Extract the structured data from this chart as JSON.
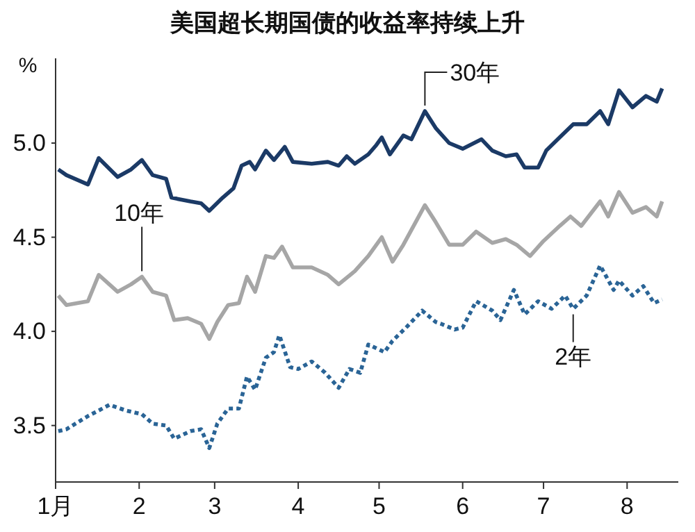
{
  "chart_data": {
    "type": "line",
    "title": "美国超长期国债的收益率持续上升",
    "ylabel": "%",
    "xlim": [
      "--01-01",
      "--08-20"
    ],
    "xticks": [
      {
        "value": "--01-01",
        "label": "1月"
      },
      {
        "value": "--02-01",
        "label": "2"
      },
      {
        "value": "--03-01",
        "label": "3"
      },
      {
        "value": "--04-01",
        "label": "4"
      },
      {
        "value": "--05-01",
        "label": "5"
      },
      {
        "value": "--06-01",
        "label": "6"
      },
      {
        "value": "--07-01",
        "label": "7"
      },
      {
        "value": "--08-01",
        "label": "8"
      }
    ],
    "ylim": [
      3.2,
      5.45
    ],
    "yticks": [
      {
        "value": 3.5,
        "label": "3.5"
      },
      {
        "value": 4,
        "label": "4.0"
      },
      {
        "value": 4.5,
        "label": "4.5"
      },
      {
        "value": 5,
        "label": "5.0"
      }
    ],
    "grid": false,
    "series": [
      {
        "color": "#1b3a66",
        "line_style": "solid",
        "x": [
          "--01-02",
          "--01-05",
          "--01-13",
          "--01-17",
          "--01-24",
          "--01-29",
          "--02-02",
          "--02-06",
          "--02-11",
          "--02-13",
          "--02-20",
          "--02-24",
          "--02-27",
          "--03-04",
          "--03-08",
          "--03-11",
          "--03-14",
          "--03-16",
          "--03-20",
          "--03-23",
          "--03-27",
          "--03-30",
          "--04-06",
          "--04-12",
          "--04-16",
          "--04-19",
          "--04-22",
          "--04-27",
          "--04-30",
          "--05-02",
          "--05-05",
          "--05-10",
          "--05-13",
          "--05-18",
          "--05-22",
          "--05-27",
          "--06-01",
          "--06-08",
          "--06-12",
          "--06-17",
          "--06-21",
          "--06-24",
          "--06-29",
          "--07-02",
          "--07-07",
          "--07-12",
          "--07-17",
          "--07-22",
          "--07-25",
          "--07-29",
          "--08-03",
          "--08-08",
          "--08-12",
          "--08-14"
        ],
        "values": [
          4.86,
          4.83,
          4.78,
          4.92,
          4.82,
          4.86,
          4.91,
          4.83,
          4.81,
          4.71,
          4.69,
          4.68,
          4.64,
          4.71,
          4.76,
          4.88,
          4.9,
          4.86,
          4.96,
          4.91,
          4.98,
          4.9,
          4.89,
          4.9,
          4.88,
          4.93,
          4.89,
          4.94,
          4.99,
          5.03,
          4.94,
          5.04,
          5.02,
          5.17,
          5.08,
          5.0,
          4.97,
          5.02,
          4.96,
          4.93,
          4.94,
          4.87,
          4.87,
          4.96,
          5.03,
          5.1,
          5.1,
          5.17,
          5.1,
          5.28,
          5.19,
          5.25,
          5.22,
          5.29
        ]
      },
      {
        "color": "#a6a6a6",
        "line_style": "solid",
        "x": [
          "--01-02",
          "--01-05",
          "--01-13",
          "--01-17",
          "--01-24",
          "--01-29",
          "--02-02",
          "--02-06",
          "--02-11",
          "--02-14",
          "--02-19",
          "--02-24",
          "--02-27",
          "--03-02",
          "--03-06",
          "--03-10",
          "--03-13",
          "--03-16",
          "--03-20",
          "--03-23",
          "--03-26",
          "--03-30",
          "--04-06",
          "--04-12",
          "--04-16",
          "--04-22",
          "--04-27",
          "--05-02",
          "--05-06",
          "--05-10",
          "--05-18",
          "--05-22",
          "--05-27",
          "--06-01",
          "--06-06",
          "--06-12",
          "--06-17",
          "--06-21",
          "--06-26",
          "--07-01",
          "--07-07",
          "--07-11",
          "--07-15",
          "--07-22",
          "--07-25",
          "--07-29",
          "--08-03",
          "--08-08",
          "--08-12",
          "--08-14"
        ],
        "values": [
          4.19,
          4.14,
          4.16,
          4.3,
          4.21,
          4.25,
          4.29,
          4.21,
          4.19,
          4.06,
          4.07,
          4.04,
          3.96,
          4.05,
          4.14,
          4.15,
          4.29,
          4.21,
          4.4,
          4.39,
          4.45,
          4.34,
          4.34,
          4.3,
          4.25,
          4.32,
          4.4,
          4.5,
          4.37,
          4.46,
          4.67,
          4.58,
          4.46,
          4.46,
          4.53,
          4.47,
          4.49,
          4.46,
          4.4,
          4.48,
          4.56,
          4.61,
          4.56,
          4.69,
          4.61,
          4.74,
          4.63,
          4.66,
          4.61,
          4.69
        ]
      },
      {
        "color": "#2a6496",
        "line_style": "dotted",
        "x": [
          "--01-02",
          "--01-05",
          "--01-13",
          "--01-21",
          "--01-27",
          "--02-02",
          "--02-06",
          "--02-11",
          "--02-14",
          "--02-20",
          "--02-24",
          "--02-27",
          "--03-02",
          "--03-06",
          "--03-10",
          "--03-13",
          "--03-16",
          "--03-20",
          "--03-23",
          "--03-25",
          "--03-29",
          "--04-01",
          "--04-06",
          "--04-11",
          "--04-16",
          "--04-20",
          "--04-24",
          "--04-27",
          "--05-03",
          "--05-06",
          "--05-11",
          "--05-17",
          "--05-22",
          "--05-24",
          "--05-29",
          "--06-01",
          "--06-06",
          "--06-12",
          "--06-15",
          "--06-20",
          "--06-24",
          "--06-29",
          "--07-04",
          "--07-09",
          "--07-12",
          "--07-17",
          "--07-22",
          "--07-27",
          "--07-29",
          "--08-03",
          "--08-07",
          "--08-11",
          "--08-14"
        ],
        "values": [
          3.47,
          3.48,
          3.55,
          3.61,
          3.58,
          3.56,
          3.51,
          3.5,
          3.43,
          3.47,
          3.48,
          3.38,
          3.51,
          3.59,
          3.59,
          3.76,
          3.69,
          3.86,
          3.89,
          3.98,
          3.81,
          3.8,
          3.84,
          3.78,
          3.7,
          3.8,
          3.78,
          3.93,
          3.89,
          3.95,
          4.02,
          4.11,
          4.05,
          4.04,
          4.01,
          4.02,
          4.16,
          4.11,
          4.06,
          4.22,
          4.09,
          4.16,
          4.12,
          4.19,
          4.12,
          4.19,
          4.35,
          4.22,
          4.27,
          4.19,
          4.24,
          4.15,
          4.17
        ]
      }
    ],
    "annotations": [
      {
        "text": "30年",
        "x": "--05-18",
        "y": 5.17
      },
      {
        "text": "10年",
        "x": "--02-02",
        "y": 4.29
      },
      {
        "text": "2年",
        "x": "--07-12",
        "y": 4.12
      }
    ]
  }
}
